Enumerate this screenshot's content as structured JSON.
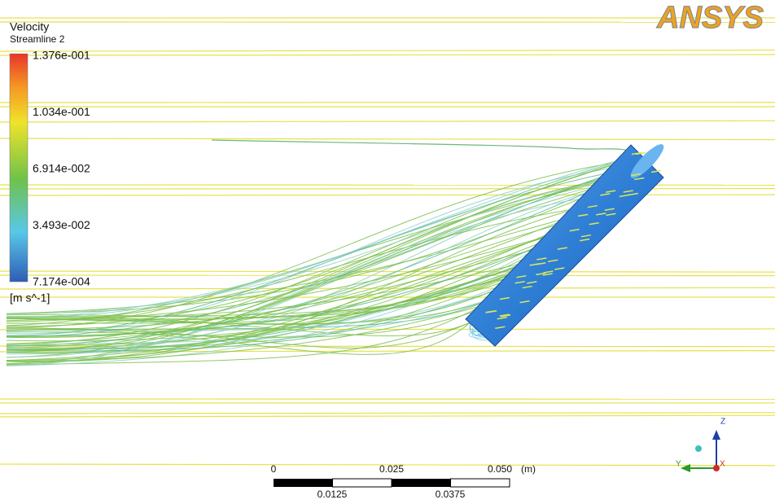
{
  "legend": {
    "title": "Velocity",
    "subtitle": "Streamline 2",
    "labels": [
      "1.376e-001",
      "1.034e-001",
      "6.914e-002",
      "3.493e-002",
      "7.174e-004"
    ],
    "unit": "[m s^-1]"
  },
  "logo": "ANSYS",
  "scale_bar": {
    "top_labels": [
      "0",
      "0.025",
      "0.050"
    ],
    "unit": "(m)",
    "bottom_labels": [
      "0.0125",
      "0.0375"
    ]
  },
  "axes": {
    "z": "Z",
    "y": "Y",
    "x": "X"
  }
}
